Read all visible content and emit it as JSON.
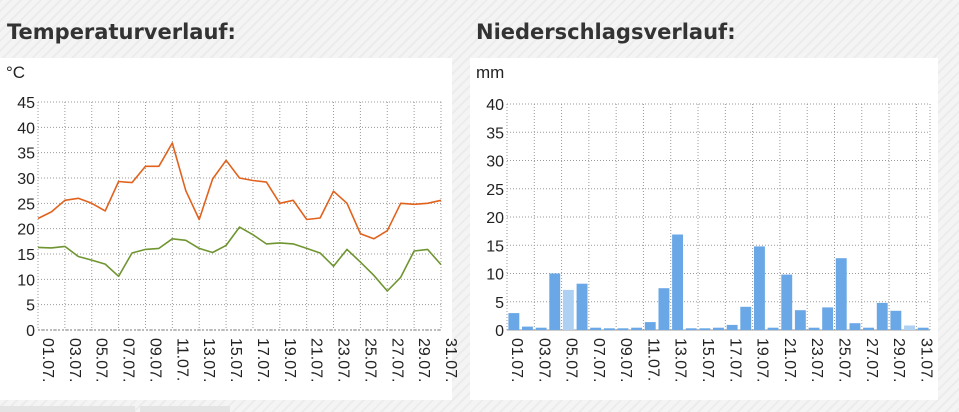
{
  "titles": {
    "temperature": "Temperaturverlauf:",
    "precipitation": "Niederschlagsverlauf:"
  },
  "chart_data": [
    {
      "type": "line",
      "title": "Temperaturverlauf:",
      "ylabel": "°C",
      "xlabel": "",
      "ylim": [
        0,
        45
      ],
      "yticks": [
        0,
        5,
        10,
        15,
        20,
        25,
        30,
        35,
        40,
        45
      ],
      "grid": true,
      "x": [
        "01.07.",
        "02.07.",
        "03.07.",
        "04.07.",
        "05.07.",
        "06.07.",
        "07.07.",
        "08.07.",
        "09.07.",
        "10.07.",
        "11.07.",
        "12.07.",
        "13.07.",
        "14.07.",
        "15.07.",
        "16.07.",
        "17.07.",
        "18.07.",
        "19.07.",
        "20.07.",
        "21.07.",
        "22.07.",
        "23.07.",
        "24.07.",
        "25.07.",
        "26.07.",
        "27.07.",
        "28.07.",
        "29.07.",
        "30.07.",
        "31.07."
      ],
      "x_tick_labels": [
        "01.07.",
        "03.07.",
        "05.07.",
        "07.07.",
        "09.07.",
        "11.07.",
        "13.07.",
        "15.07.",
        "17.07.",
        "19.07.",
        "21.07.",
        "23.07.",
        "25.07.",
        "27.07.",
        "29.07.",
        "31.07."
      ],
      "series": [
        {
          "color": "#e1621c",
          "values": [
            22.0,
            23.3,
            25.6,
            26.0,
            25.0,
            23.5,
            29.3,
            29.1,
            32.3,
            32.3,
            36.9,
            27.5,
            21.8,
            29.8,
            33.5,
            30.0,
            29.5,
            29.2,
            25.0,
            25.6,
            21.8,
            22.1,
            27.4,
            25.0,
            19.0,
            18.0,
            19.6,
            25.0,
            24.8,
            25.0,
            25.6
          ]
        },
        {
          "color": "#6f9530",
          "values": [
            16.3,
            16.2,
            16.5,
            14.5,
            13.8,
            13.0,
            10.6,
            15.2,
            15.9,
            16.1,
            18.0,
            17.7,
            16.1,
            15.3,
            16.7,
            20.3,
            18.8,
            17.0,
            17.2,
            17.0,
            16.1,
            15.2,
            12.6,
            15.9,
            13.4,
            10.8,
            7.7,
            10.4,
            15.6,
            15.9,
            12.9
          ]
        }
      ]
    },
    {
      "type": "bar",
      "title": "Niederschlagsverlauf:",
      "ylabel": "mm",
      "xlabel": "",
      "ylim": [
        0,
        40
      ],
      "yticks": [
        0,
        5,
        10,
        15,
        20,
        25,
        30,
        35,
        40
      ],
      "grid": true,
      "categories": [
        "01.07.",
        "02.07.",
        "03.07.",
        "04.07.",
        "05.07.",
        "06.07.",
        "07.07.",
        "08.07.",
        "09.07.",
        "10.07.",
        "11.07.",
        "12.07.",
        "13.07.",
        "14.07.",
        "15.07.",
        "16.07.",
        "17.07.",
        "18.07.",
        "19.07.",
        "20.07.",
        "21.07.",
        "22.07.",
        "23.07.",
        "24.07.",
        "25.07.",
        "26.07.",
        "27.07.",
        "28.07.",
        "29.07.",
        "30.07.",
        "31.07."
      ],
      "x_tick_labels": [
        "01.07.",
        "03.07.",
        "05.07.",
        "07.07.",
        "09.07.",
        "11.07.",
        "13.07.",
        "15.07.",
        "17.07.",
        "19.07.",
        "21.07.",
        "23.07.",
        "25.07.",
        "27.07.",
        "29.07.",
        "31.07."
      ],
      "values": [
        3.0,
        0.6,
        0.4,
        10.0,
        7.1,
        8.2,
        0.4,
        0.3,
        0.3,
        0.4,
        1.4,
        7.4,
        16.9,
        0.3,
        0.3,
        0.4,
        0.9,
        4.1,
        14.8,
        0.4,
        9.8,
        3.5,
        0.4,
        4.0,
        12.7,
        1.2,
        0.4,
        4.8,
        3.4,
        0.8,
        0.4
      ],
      "bar_colors": [
        "#6aa7e6",
        "#6aa7e6",
        "#6aa7e6",
        "#6aa7e6",
        "#aed0f2",
        "#6aa7e6",
        "#6aa7e6",
        "#6aa7e6",
        "#6aa7e6",
        "#6aa7e6",
        "#6aa7e6",
        "#6aa7e6",
        "#6aa7e6",
        "#6aa7e6",
        "#6aa7e6",
        "#6aa7e6",
        "#6aa7e6",
        "#6aa7e6",
        "#6aa7e6",
        "#6aa7e6",
        "#6aa7e6",
        "#6aa7e6",
        "#6aa7e6",
        "#6aa7e6",
        "#6aa7e6",
        "#6aa7e6",
        "#6aa7e6",
        "#6aa7e6",
        "#6aa7e6",
        "#aed0f2",
        "#6aa7e6"
      ]
    }
  ]
}
